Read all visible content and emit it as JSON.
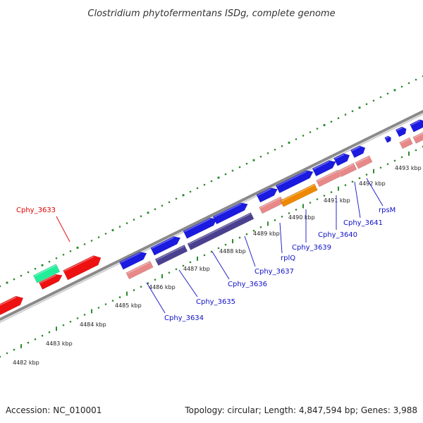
{
  "title": "Clostridium phytofermentans ISDg, complete genome",
  "footer": {
    "accession": "Accession: NC_010001",
    "summary": "Topology: circular; Length: 4,847,594 bp; Genes: 3,988"
  },
  "colors": {
    "background": "#ffffff",
    "backbone": "#8a8a8a",
    "tick": "#2e8b2e",
    "label_blue": "#1010c8",
    "label_red": "#e00000",
    "cds_blue": "#1a1ae0",
    "cds_red": "#ee1111",
    "cds_green": "#22ee99",
    "cds_navy": "#4a4090",
    "cds_orange": "#ee8800",
    "feature_pink": "#e88888"
  },
  "scale_labels": [
    {
      "text": "4482 kbp"
    },
    {
      "text": "4483 kbp"
    },
    {
      "text": "4484 kbp"
    },
    {
      "text": "4485 kbp"
    },
    {
      "text": "4486 kbp"
    },
    {
      "text": "4487 kbp"
    },
    {
      "text": "4488 kbp"
    },
    {
      "text": "4489 kbp"
    },
    {
      "text": "4490 kbp"
    },
    {
      "text": "4491 kbp"
    },
    {
      "text": "4492 kbp"
    },
    {
      "text": "4493 kbp"
    }
  ],
  "gene_labels": [
    {
      "text": "Cphy_3633",
      "color": "red"
    },
    {
      "text": "Cphy_3634",
      "color": "blue"
    },
    {
      "text": "Cphy_3635",
      "color": "blue"
    },
    {
      "text": "Cphy_3636",
      "color": "blue"
    },
    {
      "text": "Cphy_3637",
      "color": "blue"
    },
    {
      "text": "rplQ",
      "color": "blue"
    },
    {
      "text": "Cphy_3639",
      "color": "blue"
    },
    {
      "text": "Cphy_3640",
      "color": "blue"
    },
    {
      "text": "Cphy_3641",
      "color": "blue"
    },
    {
      "text": "rpsM",
      "color": "blue"
    }
  ]
}
